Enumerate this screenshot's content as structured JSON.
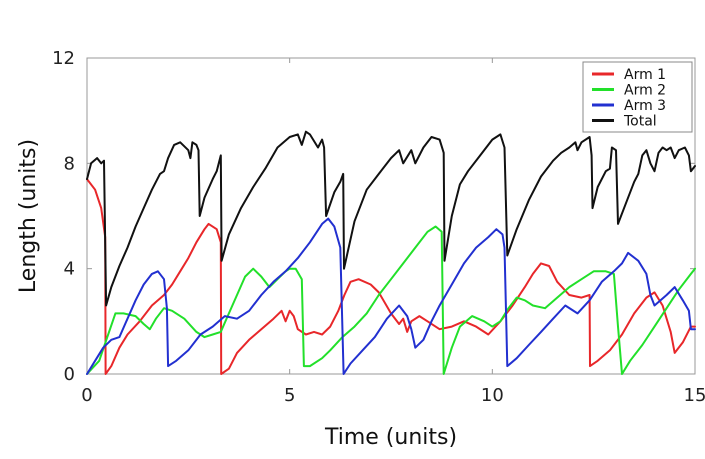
{
  "chart_data": {
    "type": "line",
    "title": "",
    "xlabel": "Time (units)",
    "ylabel": "Length (units)",
    "xlim": [
      0,
      15
    ],
    "ylim": [
      0,
      12
    ],
    "xticks": [
      0,
      5,
      10,
      15
    ],
    "yticks": [
      0,
      4,
      8,
      12
    ],
    "grid": false,
    "legend_position": "top-right",
    "series": [
      {
        "name": "Arm 1",
        "color": "#e8272a",
        "points": [
          [
            0,
            7.4
          ],
          [
            0.2,
            7.0
          ],
          [
            0.35,
            6.3
          ],
          [
            0.45,
            5.2
          ],
          [
            0.46,
            0.0
          ],
          [
            0.6,
            0.3
          ],
          [
            0.8,
            1.0
          ],
          [
            1.0,
            1.5
          ],
          [
            1.3,
            2.0
          ],
          [
            1.6,
            2.6
          ],
          [
            1.9,
            3.0
          ],
          [
            2.1,
            3.4
          ],
          [
            2.3,
            3.9
          ],
          [
            2.5,
            4.4
          ],
          [
            2.7,
            5.0
          ],
          [
            2.9,
            5.5
          ],
          [
            3.0,
            5.7
          ],
          [
            3.2,
            5.5
          ],
          [
            3.3,
            5.0
          ],
          [
            3.31,
            0.0
          ],
          [
            3.5,
            0.2
          ],
          [
            3.7,
            0.8
          ],
          [
            4.0,
            1.3
          ],
          [
            4.3,
            1.7
          ],
          [
            4.6,
            2.1
          ],
          [
            4.8,
            2.4
          ],
          [
            4.9,
            2.0
          ],
          [
            5.0,
            2.4
          ],
          [
            5.1,
            2.2
          ],
          [
            5.2,
            1.7
          ],
          [
            5.4,
            1.5
          ],
          [
            5.6,
            1.6
          ],
          [
            5.8,
            1.5
          ],
          [
            6.0,
            1.8
          ],
          [
            6.2,
            2.4
          ],
          [
            6.35,
            3.0
          ],
          [
            6.5,
            3.5
          ],
          [
            6.7,
            3.6
          ],
          [
            7.0,
            3.4
          ],
          [
            7.2,
            3.1
          ],
          [
            7.5,
            2.3
          ],
          [
            7.7,
            1.9
          ],
          [
            7.8,
            2.1
          ],
          [
            7.9,
            1.6
          ],
          [
            8.0,
            2.0
          ],
          [
            8.2,
            2.2
          ],
          [
            8.4,
            2.0
          ],
          [
            8.7,
            1.7
          ],
          [
            9.0,
            1.8
          ],
          [
            9.3,
            2.0
          ],
          [
            9.6,
            1.8
          ],
          [
            9.9,
            1.5
          ],
          [
            10.2,
            2.0
          ],
          [
            10.5,
            2.6
          ],
          [
            10.8,
            3.3
          ],
          [
            11.0,
            3.8
          ],
          [
            11.2,
            4.2
          ],
          [
            11.4,
            4.1
          ],
          [
            11.6,
            3.5
          ],
          [
            11.9,
            3.0
          ],
          [
            12.2,
            2.9
          ],
          [
            12.4,
            3.0
          ],
          [
            12.41,
            0.3
          ],
          [
            12.6,
            0.5
          ],
          [
            12.9,
            0.9
          ],
          [
            13.2,
            1.5
          ],
          [
            13.5,
            2.3
          ],
          [
            13.8,
            2.9
          ],
          [
            14.0,
            3.1
          ],
          [
            14.2,
            2.6
          ],
          [
            14.4,
            1.6
          ],
          [
            14.5,
            0.8
          ],
          [
            14.7,
            1.2
          ],
          [
            14.9,
            1.8
          ],
          [
            15.0,
            1.8
          ]
        ]
      },
      {
        "name": "Arm 2",
        "color": "#22e02a",
        "points": [
          [
            0,
            0.0
          ],
          [
            0.3,
            0.5
          ],
          [
            0.5,
            1.4
          ],
          [
            0.7,
            2.3
          ],
          [
            0.9,
            2.3
          ],
          [
            1.2,
            2.2
          ],
          [
            1.4,
            1.9
          ],
          [
            1.55,
            1.7
          ],
          [
            1.7,
            2.1
          ],
          [
            1.9,
            2.5
          ],
          [
            2.1,
            2.4
          ],
          [
            2.4,
            2.1
          ],
          [
            2.7,
            1.6
          ],
          [
            2.9,
            1.4
          ],
          [
            3.1,
            1.5
          ],
          [
            3.3,
            1.6
          ],
          [
            3.5,
            2.3
          ],
          [
            3.7,
            3.0
          ],
          [
            3.9,
            3.7
          ],
          [
            4.1,
            4.0
          ],
          [
            4.3,
            3.7
          ],
          [
            4.5,
            3.3
          ],
          [
            4.7,
            3.6
          ],
          [
            4.9,
            3.9
          ],
          [
            5.0,
            4.0
          ],
          [
            5.15,
            4.0
          ],
          [
            5.3,
            3.6
          ],
          [
            5.35,
            0.3
          ],
          [
            5.5,
            0.3
          ],
          [
            5.8,
            0.6
          ],
          [
            6.0,
            0.9
          ],
          [
            6.3,
            1.4
          ],
          [
            6.6,
            1.8
          ],
          [
            6.9,
            2.3
          ],
          [
            7.2,
            3.0
          ],
          [
            7.5,
            3.6
          ],
          [
            7.8,
            4.2
          ],
          [
            8.1,
            4.8
          ],
          [
            8.4,
            5.4
          ],
          [
            8.6,
            5.6
          ],
          [
            8.75,
            5.4
          ],
          [
            8.8,
            0.0
          ],
          [
            9.0,
            1.0
          ],
          [
            9.2,
            1.8
          ],
          [
            9.5,
            2.2
          ],
          [
            9.8,
            2.0
          ],
          [
            10.0,
            1.8
          ],
          [
            10.2,
            2.0
          ],
          [
            10.4,
            2.5
          ],
          [
            10.6,
            2.9
          ],
          [
            10.8,
            2.8
          ],
          [
            11.0,
            2.6
          ],
          [
            11.3,
            2.5
          ],
          [
            11.6,
            2.9
          ],
          [
            11.9,
            3.3
          ],
          [
            12.2,
            3.6
          ],
          [
            12.5,
            3.9
          ],
          [
            12.8,
            3.9
          ],
          [
            13.0,
            3.8
          ],
          [
            13.1,
            1.8
          ],
          [
            13.2,
            0.0
          ],
          [
            13.4,
            0.5
          ],
          [
            13.7,
            1.1
          ],
          [
            14.0,
            1.8
          ],
          [
            14.3,
            2.5
          ],
          [
            14.6,
            3.2
          ],
          [
            14.9,
            3.8
          ],
          [
            15.0,
            4.0
          ]
        ]
      },
      {
        "name": "Arm 3",
        "color": "#2230d0",
        "points": [
          [
            0,
            0.0
          ],
          [
            0.2,
            0.5
          ],
          [
            0.4,
            1.0
          ],
          [
            0.6,
            1.3
          ],
          [
            0.8,
            1.4
          ],
          [
            1.0,
            2.1
          ],
          [
            1.2,
            2.8
          ],
          [
            1.4,
            3.4
          ],
          [
            1.6,
            3.8
          ],
          [
            1.75,
            3.9
          ],
          [
            1.9,
            3.6
          ],
          [
            1.97,
            2.5
          ],
          [
            2.0,
            0.3
          ],
          [
            2.2,
            0.5
          ],
          [
            2.5,
            0.9
          ],
          [
            2.8,
            1.5
          ],
          [
            3.1,
            1.8
          ],
          [
            3.4,
            2.2
          ],
          [
            3.7,
            2.1
          ],
          [
            4.0,
            2.4
          ],
          [
            4.3,
            3.0
          ],
          [
            4.6,
            3.5
          ],
          [
            4.9,
            3.9
          ],
          [
            5.2,
            4.4
          ],
          [
            5.5,
            5.0
          ],
          [
            5.8,
            5.7
          ],
          [
            5.95,
            5.9
          ],
          [
            6.1,
            5.6
          ],
          [
            6.25,
            4.8
          ],
          [
            6.33,
            0.0
          ],
          [
            6.5,
            0.4
          ],
          [
            6.8,
            0.9
          ],
          [
            7.1,
            1.4
          ],
          [
            7.4,
            2.1
          ],
          [
            7.7,
            2.6
          ],
          [
            7.9,
            2.2
          ],
          [
            8.0,
            1.7
          ],
          [
            8.1,
            1.0
          ],
          [
            8.3,
            1.3
          ],
          [
            8.5,
            2.0
          ],
          [
            8.7,
            2.6
          ],
          [
            9.0,
            3.4
          ],
          [
            9.3,
            4.2
          ],
          [
            9.6,
            4.8
          ],
          [
            9.9,
            5.2
          ],
          [
            10.1,
            5.5
          ],
          [
            10.25,
            5.3
          ],
          [
            10.3,
            4.8
          ],
          [
            10.37,
            0.3
          ],
          [
            10.6,
            0.6
          ],
          [
            10.9,
            1.1
          ],
          [
            11.2,
            1.6
          ],
          [
            11.5,
            2.1
          ],
          [
            11.8,
            2.6
          ],
          [
            12.1,
            2.3
          ],
          [
            12.4,
            2.8
          ],
          [
            12.7,
            3.5
          ],
          [
            13.0,
            3.9
          ],
          [
            13.2,
            4.2
          ],
          [
            13.35,
            4.6
          ],
          [
            13.6,
            4.3
          ],
          [
            13.8,
            3.8
          ],
          [
            13.9,
            3.0
          ],
          [
            14.0,
            2.6
          ],
          [
            14.3,
            3.0
          ],
          [
            14.5,
            3.3
          ],
          [
            14.7,
            2.8
          ],
          [
            14.85,
            2.4
          ],
          [
            14.9,
            1.7
          ],
          [
            15.0,
            1.7
          ]
        ]
      },
      {
        "name": "Total",
        "color": "#111111",
        "points": [
          [
            0,
            7.4
          ],
          [
            0.1,
            8.0
          ],
          [
            0.25,
            8.2
          ],
          [
            0.35,
            8.0
          ],
          [
            0.42,
            8.1
          ],
          [
            0.47,
            2.6
          ],
          [
            0.6,
            3.3
          ],
          [
            0.8,
            4.1
          ],
          [
            1.0,
            4.8
          ],
          [
            1.2,
            5.6
          ],
          [
            1.4,
            6.3
          ],
          [
            1.6,
            7.0
          ],
          [
            1.8,
            7.6
          ],
          [
            1.9,
            7.7
          ],
          [
            2.0,
            8.2
          ],
          [
            2.15,
            8.7
          ],
          [
            2.3,
            8.8
          ],
          [
            2.5,
            8.5
          ],
          [
            2.55,
            8.2
          ],
          [
            2.6,
            8.8
          ],
          [
            2.7,
            8.7
          ],
          [
            2.75,
            8.5
          ],
          [
            2.78,
            6.0
          ],
          [
            2.9,
            6.7
          ],
          [
            3.1,
            7.4
          ],
          [
            3.2,
            7.7
          ],
          [
            3.3,
            8.3
          ],
          [
            3.32,
            4.3
          ],
          [
            3.5,
            5.3
          ],
          [
            3.8,
            6.3
          ],
          [
            4.1,
            7.1
          ],
          [
            4.4,
            7.8
          ],
          [
            4.7,
            8.6
          ],
          [
            5.0,
            9.0
          ],
          [
            5.2,
            9.1
          ],
          [
            5.3,
            8.7
          ],
          [
            5.4,
            9.2
          ],
          [
            5.5,
            9.1
          ],
          [
            5.7,
            8.6
          ],
          [
            5.8,
            8.9
          ],
          [
            5.85,
            8.6
          ],
          [
            5.9,
            6.0
          ],
          [
            6.1,
            6.9
          ],
          [
            6.25,
            7.3
          ],
          [
            6.32,
            7.6
          ],
          [
            6.34,
            4.0
          ],
          [
            6.6,
            5.8
          ],
          [
            6.9,
            7.0
          ],
          [
            7.2,
            7.6
          ],
          [
            7.5,
            8.2
          ],
          [
            7.7,
            8.5
          ],
          [
            7.8,
            8.0
          ],
          [
            8.0,
            8.5
          ],
          [
            8.1,
            8.0
          ],
          [
            8.3,
            8.6
          ],
          [
            8.5,
            9.0
          ],
          [
            8.7,
            8.9
          ],
          [
            8.8,
            8.4
          ],
          [
            8.82,
            4.3
          ],
          [
            9.0,
            6.0
          ],
          [
            9.2,
            7.2
          ],
          [
            9.4,
            7.7
          ],
          [
            9.7,
            8.3
          ],
          [
            10.0,
            8.9
          ],
          [
            10.2,
            9.1
          ],
          [
            10.3,
            8.6
          ],
          [
            10.37,
            4.5
          ],
          [
            10.6,
            5.5
          ],
          [
            10.9,
            6.6
          ],
          [
            11.2,
            7.5
          ],
          [
            11.5,
            8.1
          ],
          [
            11.7,
            8.4
          ],
          [
            11.9,
            8.6
          ],
          [
            12.05,
            8.8
          ],
          [
            12.1,
            8.5
          ],
          [
            12.2,
            8.8
          ],
          [
            12.4,
            9.0
          ],
          [
            12.45,
            8.3
          ],
          [
            12.47,
            6.3
          ],
          [
            12.6,
            7.1
          ],
          [
            12.8,
            7.7
          ],
          [
            12.9,
            7.8
          ],
          [
            12.95,
            8.6
          ],
          [
            13.05,
            8.5
          ],
          [
            13.1,
            5.7
          ],
          [
            13.3,
            6.5
          ],
          [
            13.5,
            7.3
          ],
          [
            13.6,
            7.6
          ],
          [
            13.7,
            8.3
          ],
          [
            13.8,
            8.5
          ],
          [
            13.9,
            8.0
          ],
          [
            14.0,
            7.7
          ],
          [
            14.1,
            8.4
          ],
          [
            14.2,
            8.6
          ],
          [
            14.3,
            8.5
          ],
          [
            14.4,
            8.6
          ],
          [
            14.5,
            8.2
          ],
          [
            14.6,
            8.5
          ],
          [
            14.75,
            8.6
          ],
          [
            14.85,
            8.3
          ],
          [
            14.9,
            7.7
          ],
          [
            15.0,
            7.9
          ]
        ]
      }
    ]
  }
}
